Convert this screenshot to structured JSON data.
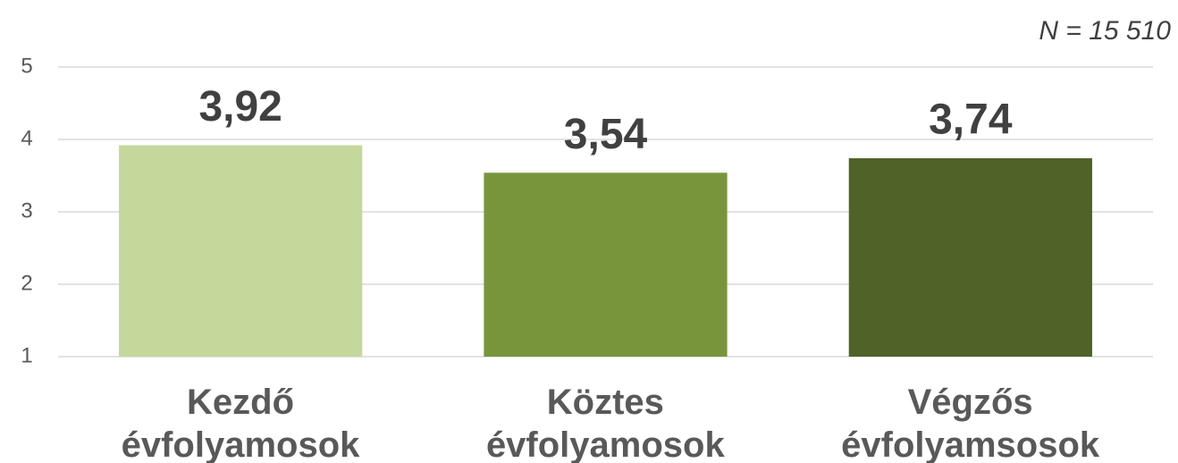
{
  "chart_data": {
    "type": "bar",
    "annotation": "N = 15 510",
    "categories": [
      "Kezdő\névfolyamosok",
      "Köztes\névfolyamosok",
      "Végzős\névfolyamsosok"
    ],
    "values": [
      3.92,
      3.54,
      3.74
    ],
    "value_labels": [
      "3,92",
      "3,54",
      "3,74"
    ],
    "colors": [
      "#c4d89b",
      "#78953c",
      "#4f6228"
    ],
    "ylim": [
      1,
      5
    ],
    "yticks": [
      1,
      2,
      3,
      4,
      5
    ],
    "grid": true
  }
}
